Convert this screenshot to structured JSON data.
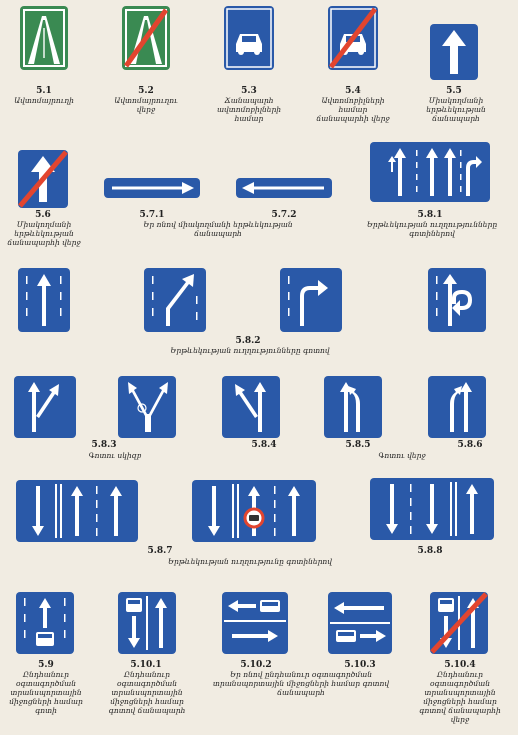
{
  "colors": {
    "blue": "#2a59a8",
    "green": "#3a8a52",
    "white": "#ffffff",
    "red": "#e2452f"
  },
  "signs": [
    {
      "num": "5.1",
      "caption": "Ավտոմայրուղի",
      "icon": "motorway-sign"
    },
    {
      "num": "5.2",
      "caption": "Ավտոմայրուղու վերջ",
      "icon": "motorway-end-sign"
    },
    {
      "num": "5.3",
      "caption": "Ճանապարհ ավտոմոբիլների համար",
      "icon": "car-road-sign"
    },
    {
      "num": "5.4",
      "caption": "Ավտոմոբիլների համար ճանապարհի վերջ",
      "icon": "car-road-end-sign"
    },
    {
      "num": "5.5",
      "caption": "Միակողմանի երթևեկության ճանապարհ",
      "icon": "one-way-sign"
    },
    {
      "num": "5.6",
      "caption": "Միակողմանի երթևեկության ճանապարհի վերջ",
      "icon": "one-way-end-sign"
    },
    {
      "num": "5.7.1",
      "caption": "",
      "icon": "exit-one-way-right-sign"
    },
    {
      "num": "5.7.2",
      "caption": "",
      "icon": "exit-one-way-left-sign"
    },
    {
      "num": "5.8.1",
      "caption": "Երթևեկության ուղղությունները գոտիներով",
      "icon": "lane-directions-sign"
    },
    {
      "num": "5.8.2",
      "caption": "Երթևեկության ուղղությունները գոտով",
      "icon": "lane-direction-sign"
    },
    {
      "num": "5.8.3",
      "caption": "Գոտու սկիզբ",
      "icon": "lane-start-sign"
    },
    {
      "num": "5.8.4",
      "caption": "",
      "icon": "lane-start-sign-2"
    },
    {
      "num": "5.8.5",
      "caption": "Գոտու վերջ",
      "icon": "lane-end-sign"
    },
    {
      "num": "5.8.6",
      "caption": "",
      "icon": "lane-end-sign-2"
    },
    {
      "num": "5.8.7",
      "caption": "Երթևեկության ուղղությունը գոտիներով",
      "icon": "lane-traffic-sign"
    },
    {
      "num": "5.8.8",
      "caption": "",
      "icon": "lane-traffic-sign-2"
    },
    {
      "num": "5.9",
      "caption": "Ընդհանուր օգտագործման տրանսպորտային միջոցների համար գոտի",
      "icon": "bus-lane-sign"
    },
    {
      "num": "5.10.1",
      "caption": "Ընդհանուր օգտագործման տրանսպորտային միջոցների համար գոտով ճանապարհ",
      "icon": "bus-road-sign"
    },
    {
      "num": "5.10.2",
      "caption": "Ընդհանուր օգտագործման տրանսպորտային միջոցների համար գոտով ճանապարհ",
      "icon": "bus-road-exit-sign"
    },
    {
      "num": "5.10.3",
      "caption": "",
      "icon": "bus-road-exit-sign-2"
    },
    {
      "num": "5.10.4",
      "caption": "Ընդհանուր օգտագործման տրանսպորտային միջոցների համար գոտով ճանապարհի վերջ",
      "icon": "bus-road-end-sign"
    }
  ],
  "group_captions": {
    "g571": "Եր ոնով միակողմանի երթևեկության ճանապարհ",
    "g5102": "Եր ոնով ընդհանուր օգտագործման տրանսպորտային միջոցների համար գոտով ճանապարհ"
  }
}
